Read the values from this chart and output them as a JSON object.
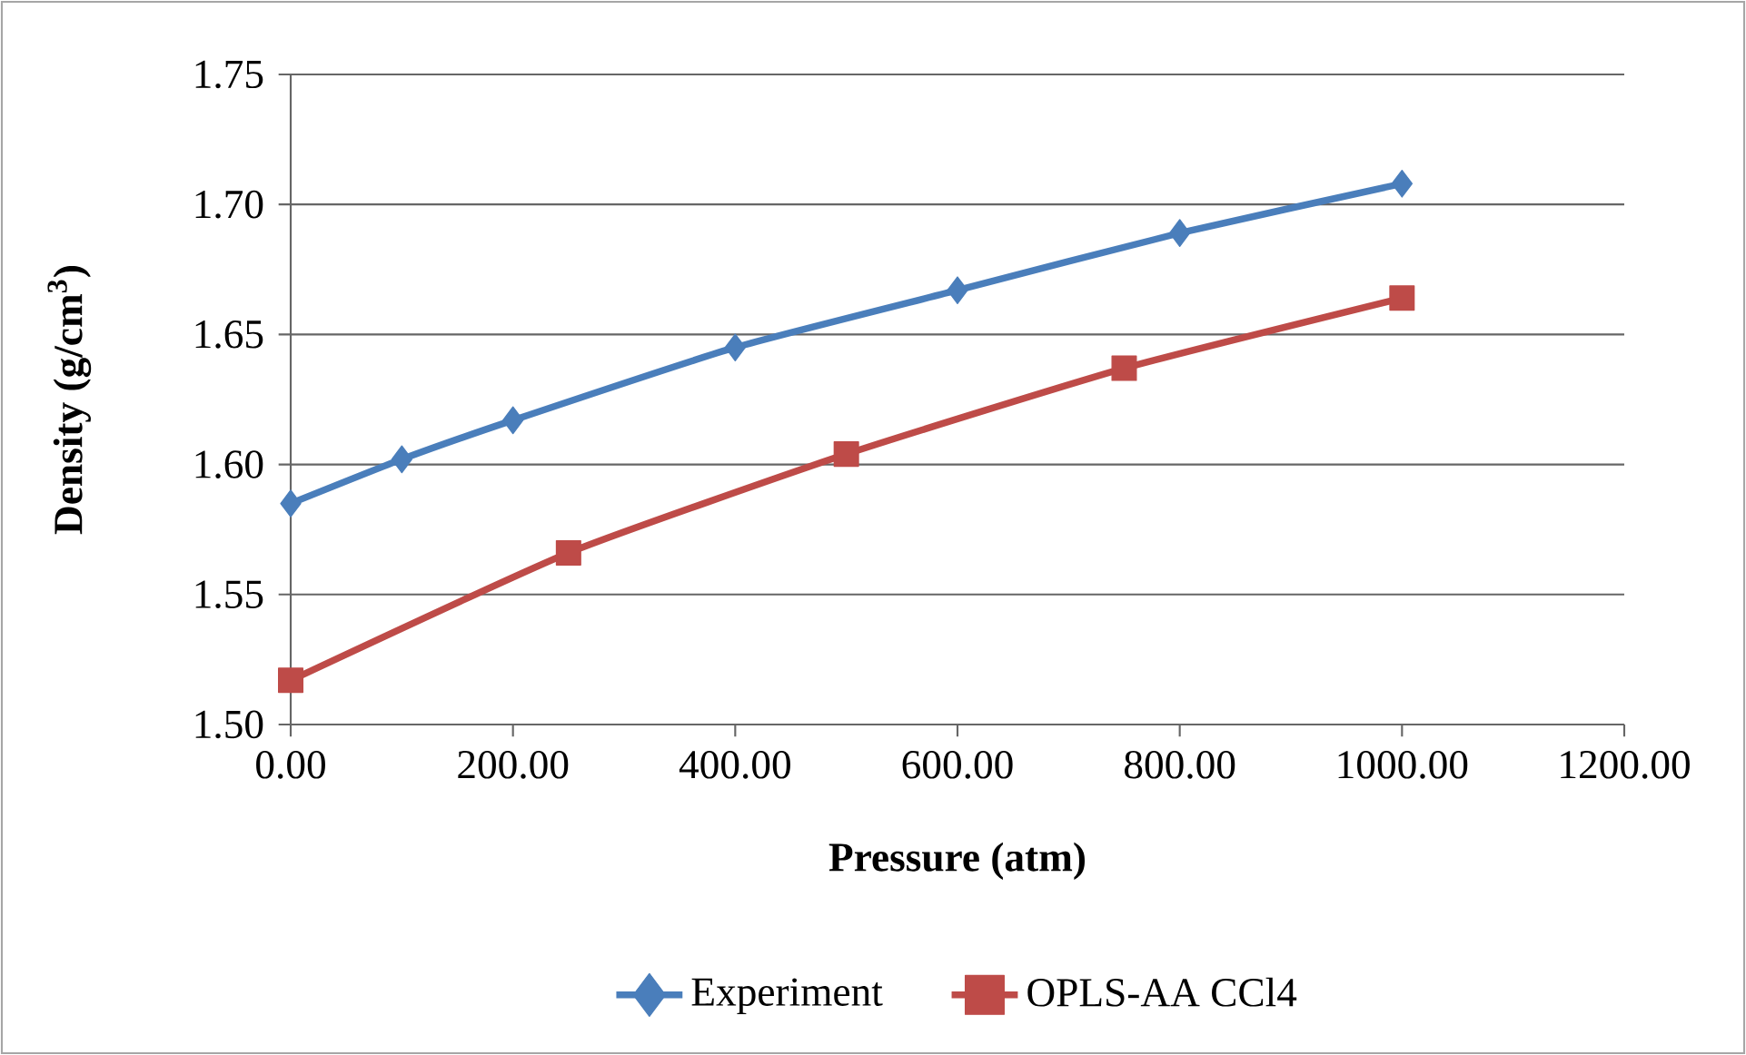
{
  "chart_data": {
    "type": "line",
    "xlabel": "Pressure (atm)",
    "ylabel": "Density (g/cm$^{3}$)",
    "xlim": [
      0,
      1200
    ],
    "ylim": [
      1.5,
      1.75
    ],
    "xticks": [
      {
        "value": 0,
        "label": "0.00"
      },
      {
        "value": 200,
        "label": "200.00"
      },
      {
        "value": 400,
        "label": "400.00"
      },
      {
        "value": 600,
        "label": "600.00"
      },
      {
        "value": 800,
        "label": "800.00"
      },
      {
        "value": 1000,
        "label": "1000.00"
      },
      {
        "value": 1200,
        "label": "1200.00"
      }
    ],
    "yticks": [
      {
        "value": 1.5,
        "label": "1.50"
      },
      {
        "value": 1.55,
        "label": "1.55"
      },
      {
        "value": 1.6,
        "label": "1.60"
      },
      {
        "value": 1.65,
        "label": "1.65"
      },
      {
        "value": 1.7,
        "label": "1.70"
      },
      {
        "value": 1.75,
        "label": "1.75"
      }
    ],
    "grid": "y",
    "legend": "bottom",
    "line_style": "solid",
    "series": [
      {
        "name": "Experiment",
        "color": "#4a7ebb",
        "marker": "diamond",
        "x": [
          0,
          100,
          200,
          400,
          600,
          800,
          1000
        ],
        "values": [
          1.585,
          1.602,
          1.617,
          1.645,
          1.667,
          1.689,
          1.708
        ]
      },
      {
        "name": "OPLS-AA CCl4",
        "color": "#be4b48",
        "marker": "square",
        "x": [
          0,
          250,
          500,
          750,
          1000
        ],
        "values": [
          1.517,
          1.566,
          1.604,
          1.637,
          1.664
        ]
      }
    ]
  }
}
